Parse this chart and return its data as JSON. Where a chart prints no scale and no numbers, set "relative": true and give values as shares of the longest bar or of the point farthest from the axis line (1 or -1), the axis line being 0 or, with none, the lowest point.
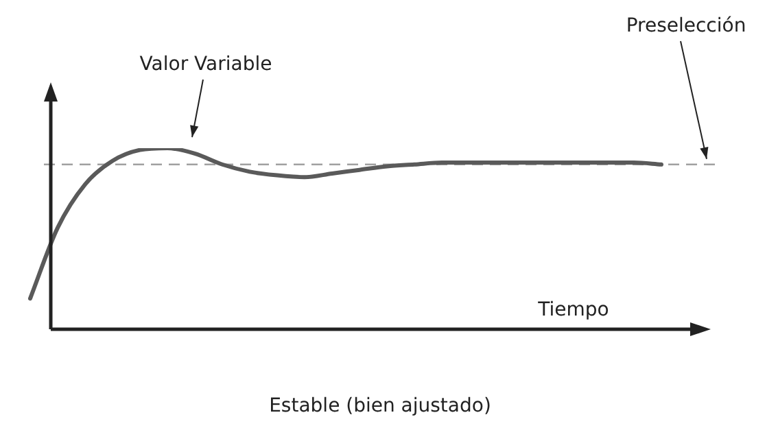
{
  "chart_data": {
    "type": "line",
    "title": "Estable (bien ajustado)",
    "xlabel": "Tiempo",
    "relative": true,
    "legend": false,
    "marker": "none",
    "line_style": "solid",
    "categories": [
      null,
      null,
      null,
      null,
      null,
      null,
      null,
      null,
      null,
      null,
      null,
      null,
      null,
      null,
      null,
      null,
      null,
      null,
      null,
      null,
      null,
      null,
      null,
      null
    ],
    "series": [
      {
        "name": "Valor Variable",
        "color": "#5a5a5a",
        "values": [
          0.17,
          0.56,
          0.8,
          0.93,
          0.99,
          1.0,
          0.97,
          0.91,
          0.87,
          0.85,
          0.84,
          0.86,
          0.88,
          0.9,
          0.91,
          0.92,
          0.92,
          0.92,
          0.92,
          0.92,
          0.92,
          0.92,
          0.92,
          0.91
        ]
      }
    ],
    "ref_lines": [
      {
        "axis": "y",
        "value": 0.91,
        "label": "Preselección",
        "color": "#a0a0a0",
        "line_style": "dashed"
      }
    ]
  }
}
